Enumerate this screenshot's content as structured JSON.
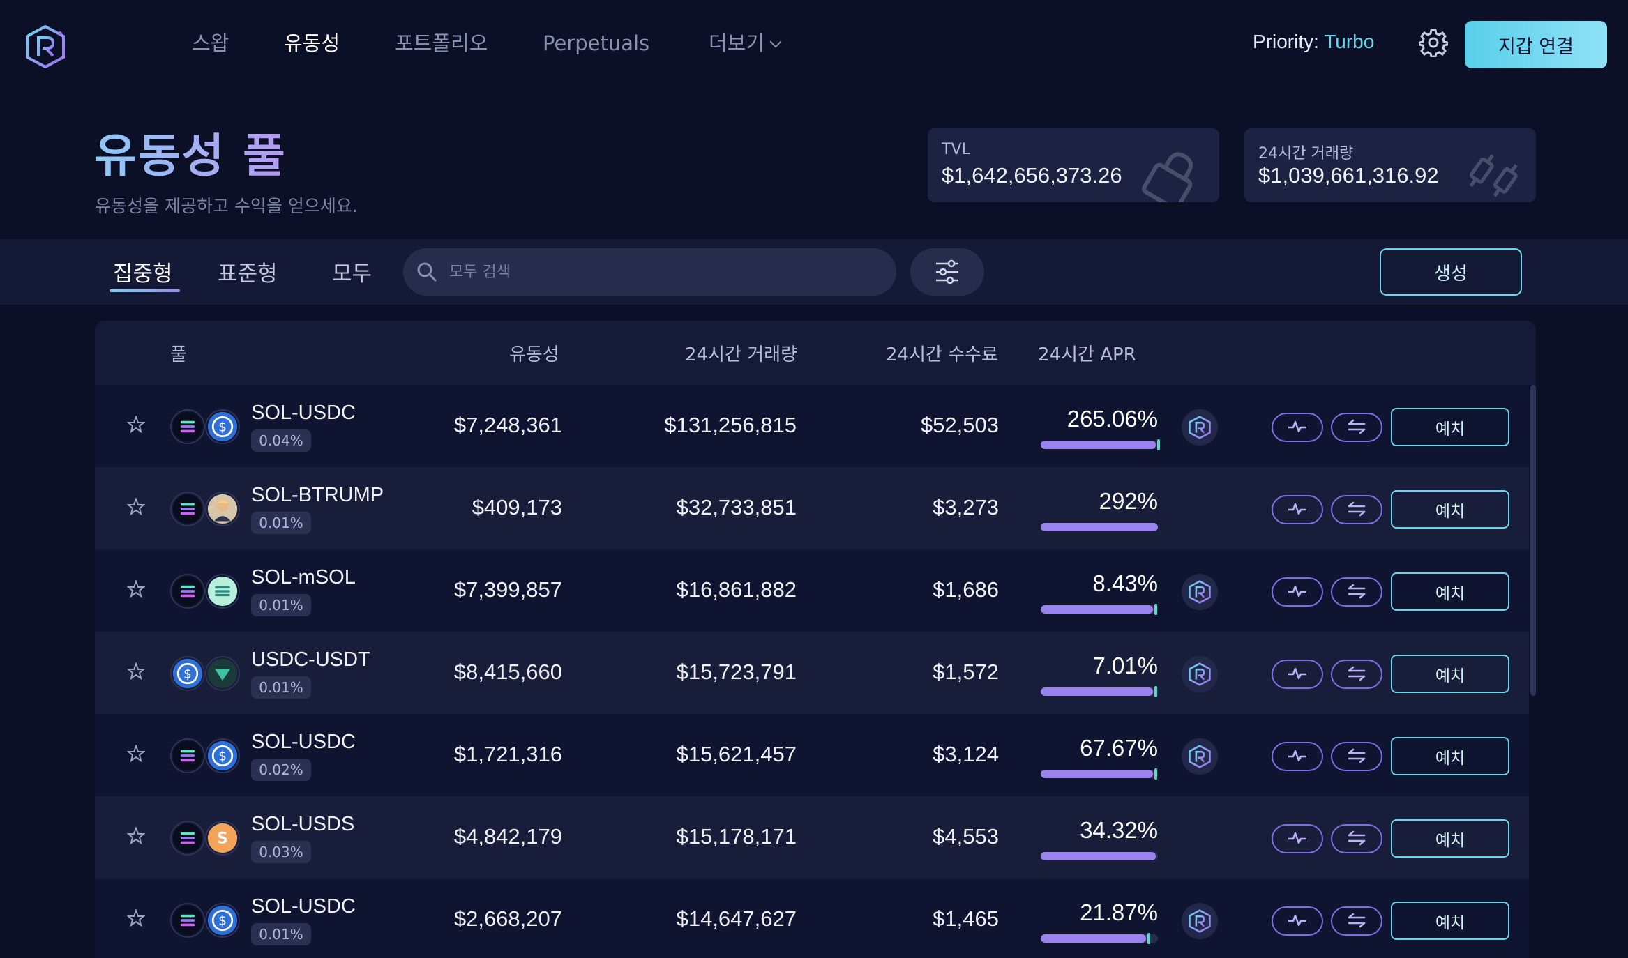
{
  "nav": {
    "items": [
      {
        "label": "스왑",
        "active": false
      },
      {
        "label": "유동성",
        "active": true
      },
      {
        "label": "포트폴리오",
        "active": false
      },
      {
        "label": "Perpetuals",
        "active": false
      },
      {
        "label": "더보기",
        "active": false
      }
    ],
    "priority_label": "Priority:",
    "priority_value": "Turbo",
    "connect_label": "지갑 연결"
  },
  "header": {
    "title": "유동성 풀",
    "subtitle": "유동성을 제공하고 수익을 얻으세요."
  },
  "stats": [
    {
      "label": "TVL",
      "value": "$1,642,656,373.26"
    },
    {
      "label": "24시간 거래량",
      "value": "$1,039,661,316.92"
    }
  ],
  "filters": {
    "tabs": [
      "집중형",
      "표준형",
      "모두"
    ],
    "active_tab": "집중형",
    "search_placeholder": "모두 검색",
    "create_label": "생성"
  },
  "table": {
    "headers": {
      "pool": "풀",
      "liquidity": "유동성",
      "volume": "24시간 거래량",
      "fees": "24시간 수수료",
      "apr": "24시간 APR"
    },
    "deposit_label": "예치",
    "rows": [
      {
        "name": "SOL-USDC",
        "fee": "0.04%",
        "liquidity": "$7,248,361",
        "volume": "$131,256,815",
        "fees": "$52,503",
        "apr": "265.06%",
        "apr_fill": 0.98,
        "farm": true,
        "coins": [
          "sol-icon",
          "usdc-icon"
        ]
      },
      {
        "name": "SOL-BTRUMP",
        "fee": "0.01%",
        "liquidity": "$409,173",
        "volume": "$32,733,851",
        "fees": "$3,273",
        "apr": "292%",
        "apr_fill": 1.0,
        "farm": false,
        "coins": [
          "sol-icon",
          "btrump-icon"
        ]
      },
      {
        "name": "SOL-mSOL",
        "fee": "0.01%",
        "liquidity": "$7,399,857",
        "volume": "$16,861,882",
        "fees": "$1,686",
        "apr": "8.43%",
        "apr_fill": 0.96,
        "farm": true,
        "coins": [
          "sol-icon",
          "msol-icon"
        ]
      },
      {
        "name": "USDC-USDT",
        "fee": "0.01%",
        "liquidity": "$8,415,660",
        "volume": "$15,723,791",
        "fees": "$1,572",
        "apr": "7.01%",
        "apr_fill": 0.96,
        "farm": true,
        "coins": [
          "usdc-icon",
          "usdt-icon"
        ]
      },
      {
        "name": "SOL-USDC",
        "fee": "0.02%",
        "liquidity": "$1,721,316",
        "volume": "$15,621,457",
        "fees": "$3,124",
        "apr": "67.67%",
        "apr_fill": 0.96,
        "farm": true,
        "coins": [
          "sol-icon",
          "usdc-icon"
        ]
      },
      {
        "name": "SOL-USDS",
        "fee": "0.03%",
        "liquidity": "$4,842,179",
        "volume": "$15,178,171",
        "fees": "$4,553",
        "apr": "34.32%",
        "apr_fill": 0.98,
        "farm": false,
        "coins": [
          "sol-icon",
          "usds-icon"
        ]
      },
      {
        "name": "SOL-USDC",
        "fee": "0.01%",
        "liquidity": "$2,668,207",
        "volume": "$14,647,627",
        "fees": "$1,465",
        "apr": "21.87%",
        "apr_fill": 0.9,
        "farm": true,
        "coins": [
          "sol-icon",
          "usdc-icon"
        ]
      }
    ]
  },
  "colors": {
    "accent": "#58cfe9",
    "apr_bar": "#9a83ec",
    "panel": "#1c2241"
  }
}
